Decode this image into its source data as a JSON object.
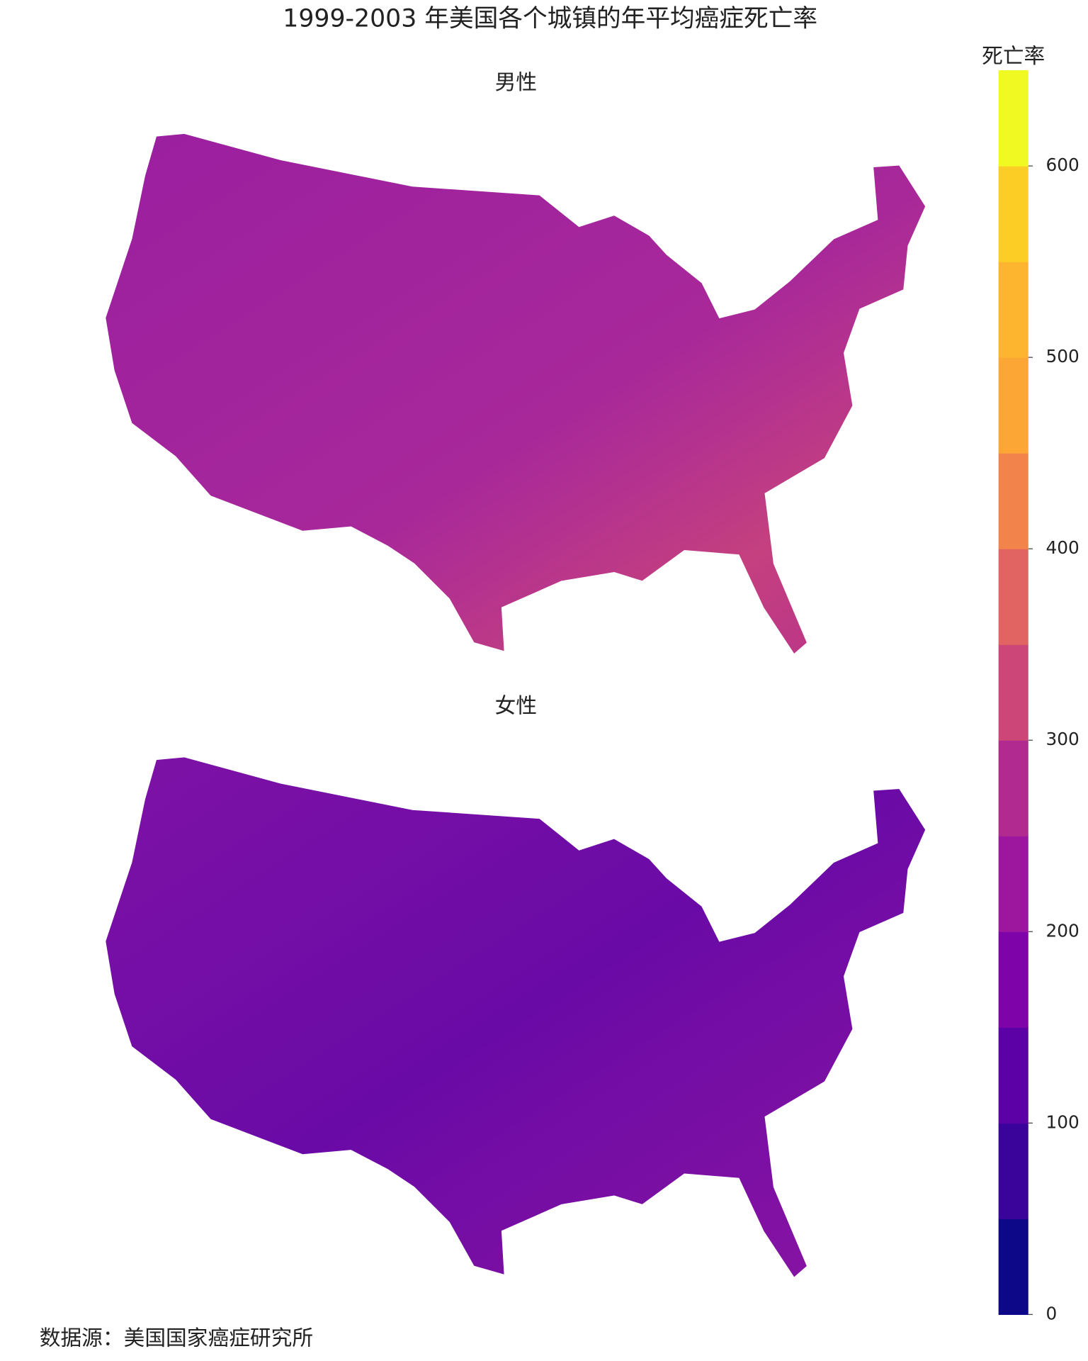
{
  "chart_data": {
    "type": "choropleth",
    "title": "1999-2003 年美国各个城镇的年平均癌症死亡率",
    "maps": [
      {
        "title": "男性"
      },
      {
        "title": "女性"
      }
    ],
    "colorbar": {
      "title": "死亡率",
      "range": [
        0,
        650
      ],
      "ticks": [
        0,
        100,
        200,
        300,
        400,
        500,
        600
      ],
      "colors": [
        "#0d0887",
        "#3a049a",
        "#5c01a6",
        "#7e03a8",
        "#9c179e",
        "#b12a90",
        "#cc4778",
        "#e16462",
        "#f2844b",
        "#fca636",
        "#fdb42f",
        "#fcce25",
        "#f0f921"
      ]
    },
    "source": "数据源：美国国家癌症研究所"
  }
}
